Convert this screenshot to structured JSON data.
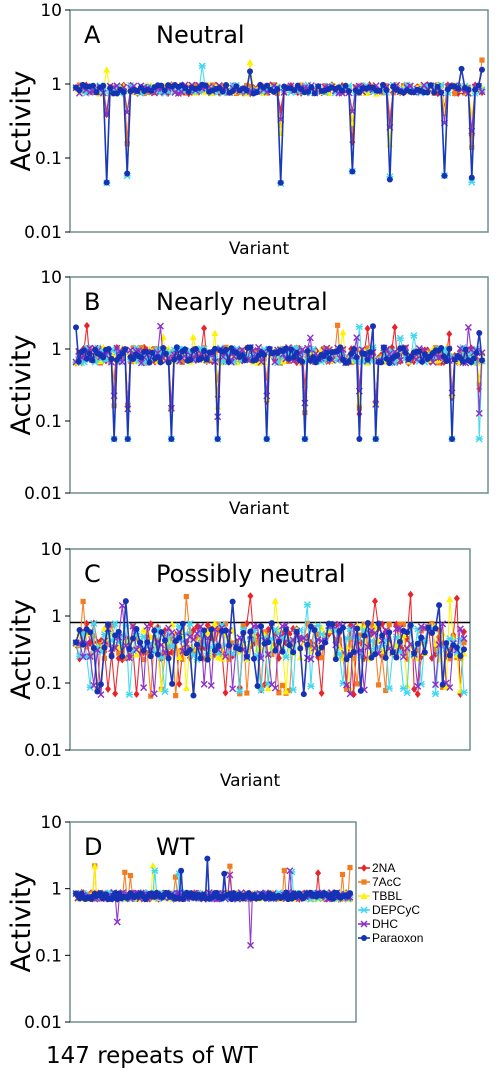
{
  "figure": {
    "footer": "147 repeats of WT"
  },
  "chart_data": [
    {
      "type": "line",
      "panel_letter": "A",
      "title": "Neutral",
      "xlabel": "Variant",
      "ylabel": "Activity",
      "yscale": "log",
      "ylim": [
        0.01,
        10
      ],
      "yticks": [
        "10",
        "1",
        "0.1",
        "0.01"
      ],
      "reference_line": false,
      "profile": "neutral",
      "n_points": 120
    },
    {
      "type": "line",
      "panel_letter": "B",
      "title": "Nearly neutral",
      "xlabel": "Variant",
      "ylabel": "Activity",
      "yscale": "log",
      "ylim": [
        0.01,
        10
      ],
      "yticks": [
        "10",
        "1",
        "0.1",
        "0.01"
      ],
      "reference_line": false,
      "profile": "nearly",
      "n_points": 150
    },
    {
      "type": "line",
      "panel_letter": "C",
      "title": "Possibly neutral",
      "xlabel": "Variant",
      "ylabel": "Activity",
      "yscale": "log",
      "ylim": [
        0.01,
        10
      ],
      "yticks": [
        "10",
        "1",
        "0.1",
        "0.01"
      ],
      "reference_line": true,
      "reference_value": 0.8,
      "profile": "possibly",
      "n_points": 110
    },
    {
      "type": "line",
      "panel_letter": "D",
      "title": "WT",
      "xlabel": "",
      "ylabel": "Activity",
      "yscale": "log",
      "ylim": [
        0.01,
        10
      ],
      "yticks": [
        "10",
        "1",
        "0.1",
        "0.01"
      ],
      "reference_line": false,
      "profile": "wt",
      "n_points": 147
    }
  ],
  "series": [
    {
      "name": "2NA",
      "color": "#e8242a",
      "marker": "diamond"
    },
    {
      "name": "7AcC",
      "color": "#f47c20",
      "marker": "square"
    },
    {
      "name": "TBBL",
      "color": "#fff200",
      "marker": "triangle"
    },
    {
      "name": "DEPCyC",
      "color": "#40d8f0",
      "marker": "star"
    },
    {
      "name": "DHC",
      "color": "#8b2fc9",
      "marker": "cross"
    },
    {
      "name": "Paraoxon",
      "color": "#1532b5",
      "marker": "circle"
    }
  ],
  "legend": {
    "placement": "right of panel D"
  }
}
